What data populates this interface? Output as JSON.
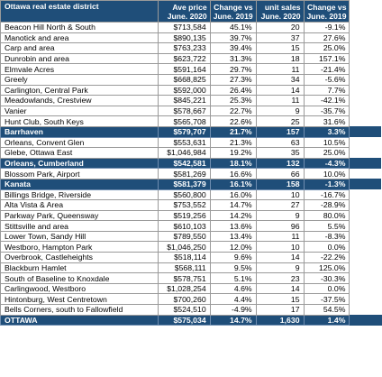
{
  "table": {
    "headers": [
      [
        "Ottawa real estate district",
        ""
      ],
      [
        "Ave price",
        "June. 2020"
      ],
      [
        "Change vs",
        "June. 2019"
      ],
      [
        "unit sales",
        "June. 2020"
      ],
      [
        "Change vs",
        "June. 2019"
      ]
    ],
    "rows": [
      {
        "district": "Beacon Hill North & South",
        "price": "$713,584",
        "pchange": "45.1%",
        "units": "20",
        "uchange": "-9.1%",
        "highlight": false
      },
      {
        "district": "Manotick and area",
        "price": "$890,135",
        "pchange": "39.7%",
        "units": "37",
        "uchange": "27.6%",
        "highlight": false
      },
      {
        "district": "Carp and area",
        "price": "$763,233",
        "pchange": "39.4%",
        "units": "15",
        "uchange": "25.0%",
        "highlight": false
      },
      {
        "district": "Dunrobin and area",
        "price": "$623,722",
        "pchange": "31.3%",
        "units": "18",
        "uchange": "157.1%",
        "highlight": false
      },
      {
        "district": "Elmvale Acres",
        "price": "$591,164",
        "pchange": "29.7%",
        "units": "11",
        "uchange": "-21.4%",
        "highlight": false
      },
      {
        "district": "Greely",
        "price": "$668,825",
        "pchange": "27.3%",
        "units": "34",
        "uchange": "-5.6%",
        "highlight": false
      },
      {
        "district": "Carlington, Central Park",
        "price": "$592,000",
        "pchange": "26.4%",
        "units": "14",
        "uchange": "7.7%",
        "highlight": false
      },
      {
        "district": "Meadowlands, Crestview",
        "price": "$845,221",
        "pchange": "25.3%",
        "units": "11",
        "uchange": "-42.1%",
        "highlight": false
      },
      {
        "district": "Vanier",
        "price": "$578,667",
        "pchange": "22.7%",
        "units": "9",
        "uchange": "-35.7%",
        "highlight": false
      },
      {
        "district": "Hunt Club, South Keys",
        "price": "$565,708",
        "pchange": "22.6%",
        "units": "25",
        "uchange": "31.6%",
        "highlight": false
      },
      {
        "district": "Barrhaven",
        "price": "$579,707",
        "pchange": "21.7%",
        "units": "157",
        "uchange": "3.3%",
        "highlight": true
      },
      {
        "district": "Orleans, Convent Glen",
        "price": "$553,631",
        "pchange": "21.3%",
        "units": "63",
        "uchange": "10.5%",
        "highlight": false
      },
      {
        "district": "Glebe, Ottawa East",
        "price": "$1,046,984",
        "pchange": "19.2%",
        "units": "35",
        "uchange": "25.0%",
        "highlight": false
      },
      {
        "district": "Orleans, Cumberland",
        "price": "$542,581",
        "pchange": "18.1%",
        "units": "132",
        "uchange": "-4.3%",
        "highlight": true
      },
      {
        "district": "Blossom Park, Airport",
        "price": "$581,269",
        "pchange": "16.6%",
        "units": "66",
        "uchange": "10.0%",
        "highlight": false
      },
      {
        "district": "Kanata",
        "price": "$581,379",
        "pchange": "16.1%",
        "units": "158",
        "uchange": "-1.3%",
        "highlight": true
      },
      {
        "district": "Billings Bridge, Riverside",
        "price": "$560,800",
        "pchange": "16.0%",
        "units": "10",
        "uchange": "-16.7%",
        "highlight": false
      },
      {
        "district": "Alta Vista & Area",
        "price": "$753,552",
        "pchange": "14.7%",
        "units": "27",
        "uchange": "-28.9%",
        "highlight": false
      },
      {
        "district": "Parkway Park, Queensway",
        "price": "$519,256",
        "pchange": "14.2%",
        "units": "9",
        "uchange": "80.0%",
        "highlight": false
      },
      {
        "district": "Stittsville and area",
        "price": "$610,103",
        "pchange": "13.6%",
        "units": "96",
        "uchange": "5.5%",
        "highlight": false
      },
      {
        "district": "Lower Town, Sandy Hill",
        "price": "$789,550",
        "pchange": "13.4%",
        "units": "11",
        "uchange": "-8.3%",
        "highlight": false
      },
      {
        "district": "Westboro, Hampton Park",
        "price": "$1,046,250",
        "pchange": "12.0%",
        "units": "10",
        "uchange": "0.0%",
        "highlight": false
      },
      {
        "district": "Overbrook, Castleheights",
        "price": "$518,114",
        "pchange": "9.6%",
        "units": "14",
        "uchange": "-22.2%",
        "highlight": false
      },
      {
        "district": "Blackburn Hamlet",
        "price": "$568,111",
        "pchange": "9.5%",
        "units": "9",
        "uchange": "125.0%",
        "highlight": false
      },
      {
        "district": "South of Baseline to Knoxdale",
        "price": "$578,751",
        "pchange": "5.1%",
        "units": "23",
        "uchange": "-30.3%",
        "highlight": false
      },
      {
        "district": "Carlingwood, Westboro",
        "price": "$1,028,254",
        "pchange": "4.6%",
        "units": "14",
        "uchange": "0.0%",
        "highlight": false
      },
      {
        "district": "Hintonburg, West Centretown",
        "price": "$700,260",
        "pchange": "4.4%",
        "units": "15",
        "uchange": "-37.5%",
        "highlight": false
      },
      {
        "district": "Bells Corners, south to Fallowfield",
        "price": "$524,510",
        "pchange": "-4.9%",
        "units": "17",
        "uchange": "54.5%",
        "highlight": false
      },
      {
        "district": "OTTAWA",
        "price": "$575,034",
        "pchange": "14.7%",
        "units": "1,630",
        "uchange": "1.4%",
        "highlight": true
      }
    ]
  },
  "colors": {
    "header_bg": "#1f4e79",
    "header_text": "#ffffff",
    "grid": "#9a9a9a"
  }
}
